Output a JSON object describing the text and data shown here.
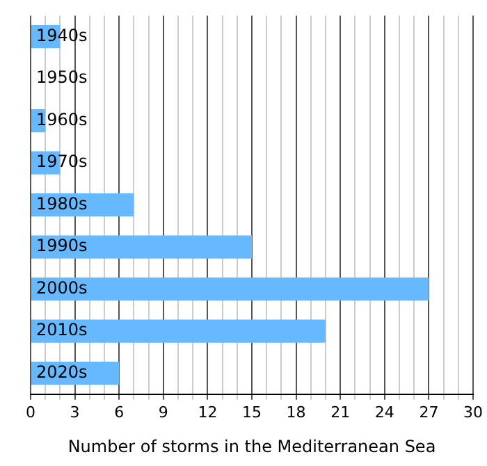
{
  "chart_data": {
    "type": "bar",
    "orientation": "horizontal",
    "xlabel": "Number of storms in the Mediterranean Sea",
    "categories": [
      "1940s",
      "1950s",
      "1960s",
      "1970s",
      "1980s",
      "1990s",
      "2000s",
      "2010s",
      "2020s"
    ],
    "values": [
      2,
      0,
      1,
      2,
      7,
      15,
      27,
      20,
      6
    ],
    "color": "#66b8ff",
    "xlim": [
      0,
      30
    ],
    "xticks": [
      0,
      {
        "value": 1,
        "label": null
      },
      {
        "value": 2,
        "label": null
      },
      3,
      {
        "value": 4,
        "label": null
      },
      {
        "value": 5,
        "label": null
      },
      6,
      {
        "value": 7,
        "label": null
      },
      {
        "value": 8,
        "label": null
      },
      9,
      {
        "value": 10,
        "label": null
      },
      {
        "value": 11,
        "label": null
      },
      12,
      {
        "value": 13,
        "label": null
      },
      {
        "value": 14,
        "label": null
      },
      15,
      {
        "value": 16,
        "label": null
      },
      {
        "value": 17,
        "label": null
      },
      18,
      {
        "value": 19,
        "label": null
      },
      {
        "value": 20,
        "label": null
      },
      21,
      {
        "value": 22,
        "label": null
      },
      {
        "value": 23,
        "label": null
      },
      24,
      {
        "value": 25,
        "label": null
      },
      {
        "value": 26,
        "label": null
      },
      27,
      {
        "value": 28,
        "label": null
      },
      {
        "value": 29,
        "label": null
      },
      30
    ],
    "grid": "x"
  }
}
